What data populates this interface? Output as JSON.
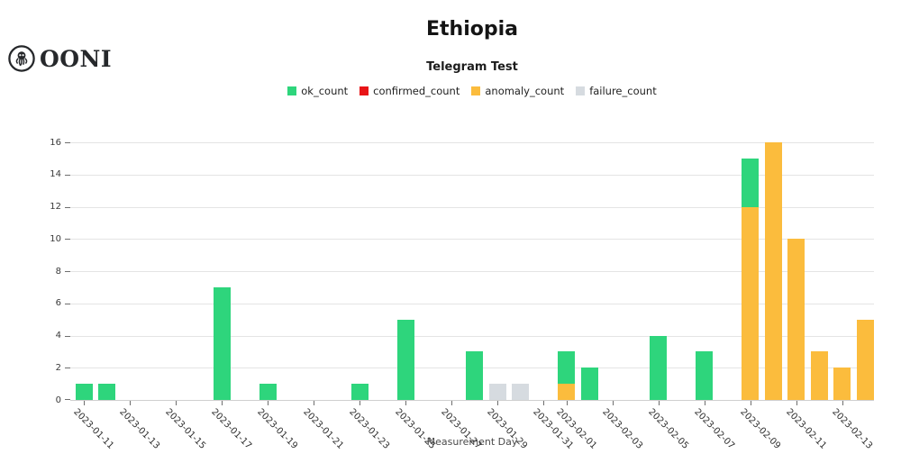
{
  "logo": {
    "text": "OONI",
    "icon": "ooni-octopus-icon"
  },
  "chart_data": {
    "type": "bar",
    "stacked": true,
    "title": "Ethiopia",
    "subtitle": "Telegram Test",
    "xlabel": "Measurement Day",
    "ylabel": "",
    "ylim": [
      0,
      16
    ],
    "yticks": [
      0,
      2,
      4,
      6,
      8,
      10,
      12,
      14,
      16
    ],
    "grid": "horizontal",
    "legend_position": "top-center",
    "x_start_date": "2023-01-11",
    "x_days_shown": 35,
    "series": [
      {
        "name": "ok_count",
        "color": "#2ed57c"
      },
      {
        "name": "confirmed_count",
        "color": "#e81417"
      },
      {
        "name": "anomaly_count",
        "color": "#fbbc3d"
      },
      {
        "name": "failure_count",
        "color": "#d6dbe0"
      }
    ],
    "stack_order_bottom_to_top": [
      "failure_count",
      "anomaly_count",
      "confirmed_count",
      "ok_count"
    ],
    "xticks": [
      {
        "label": "2023-01-11",
        "day": 0
      },
      {
        "label": "2023-01-13",
        "day": 2
      },
      {
        "label": "2023-01-15",
        "day": 4
      },
      {
        "label": "2023-01-17",
        "day": 6
      },
      {
        "label": "2023-01-19",
        "day": 8
      },
      {
        "label": "2023-01-21",
        "day": 10
      },
      {
        "label": "2023-01-23",
        "day": 12
      },
      {
        "label": "2023-01-25",
        "day": 14
      },
      {
        "label": "2023-01-27",
        "day": 16
      },
      {
        "label": "2023-01-29",
        "day": 18
      },
      {
        "label": "2023-01-31",
        "day": 20
      },
      {
        "label": "2023-02-01",
        "day": 21
      },
      {
        "label": "2023-02-03",
        "day": 23
      },
      {
        "label": "2023-02-05",
        "day": 25
      },
      {
        "label": "2023-02-07",
        "day": 27
      },
      {
        "label": "2023-02-09",
        "day": 29
      },
      {
        "label": "2023-02-11",
        "day": 31
      },
      {
        "label": "2023-02-13",
        "day": 33
      }
    ],
    "bars": [
      {
        "date": "2023-01-11",
        "day": 0,
        "ok_count": 1
      },
      {
        "date": "2023-01-12",
        "day": 1,
        "ok_count": 1
      },
      {
        "date": "2023-01-17",
        "day": 6,
        "ok_count": 7
      },
      {
        "date": "2023-01-19",
        "day": 8,
        "ok_count": 1
      },
      {
        "date": "2023-01-23",
        "day": 12,
        "ok_count": 1
      },
      {
        "date": "2023-01-25",
        "day": 14,
        "ok_count": 5
      },
      {
        "date": "2023-01-28",
        "day": 17,
        "ok_count": 3
      },
      {
        "date": "2023-01-29",
        "day": 18,
        "failure_count": 1
      },
      {
        "date": "2023-01-30",
        "day": 19,
        "failure_count": 1
      },
      {
        "date": "2023-02-01",
        "day": 21,
        "anomaly_count": 1,
        "ok_count": 2
      },
      {
        "date": "2023-02-02",
        "day": 22,
        "ok_count": 2
      },
      {
        "date": "2023-02-05",
        "day": 25,
        "ok_count": 4
      },
      {
        "date": "2023-02-07",
        "day": 27,
        "ok_count": 3
      },
      {
        "date": "2023-02-09",
        "day": 29,
        "anomaly_count": 12,
        "ok_count": 3
      },
      {
        "date": "2023-02-10",
        "day": 30,
        "anomaly_count": 16
      },
      {
        "date": "2023-02-11",
        "day": 31,
        "anomaly_count": 10
      },
      {
        "date": "2023-02-12",
        "day": 32,
        "anomaly_count": 3
      },
      {
        "date": "2023-02-13",
        "day": 33,
        "anomaly_count": 2
      },
      {
        "date": "2023-02-14",
        "day": 34,
        "anomaly_count": 5
      }
    ]
  }
}
